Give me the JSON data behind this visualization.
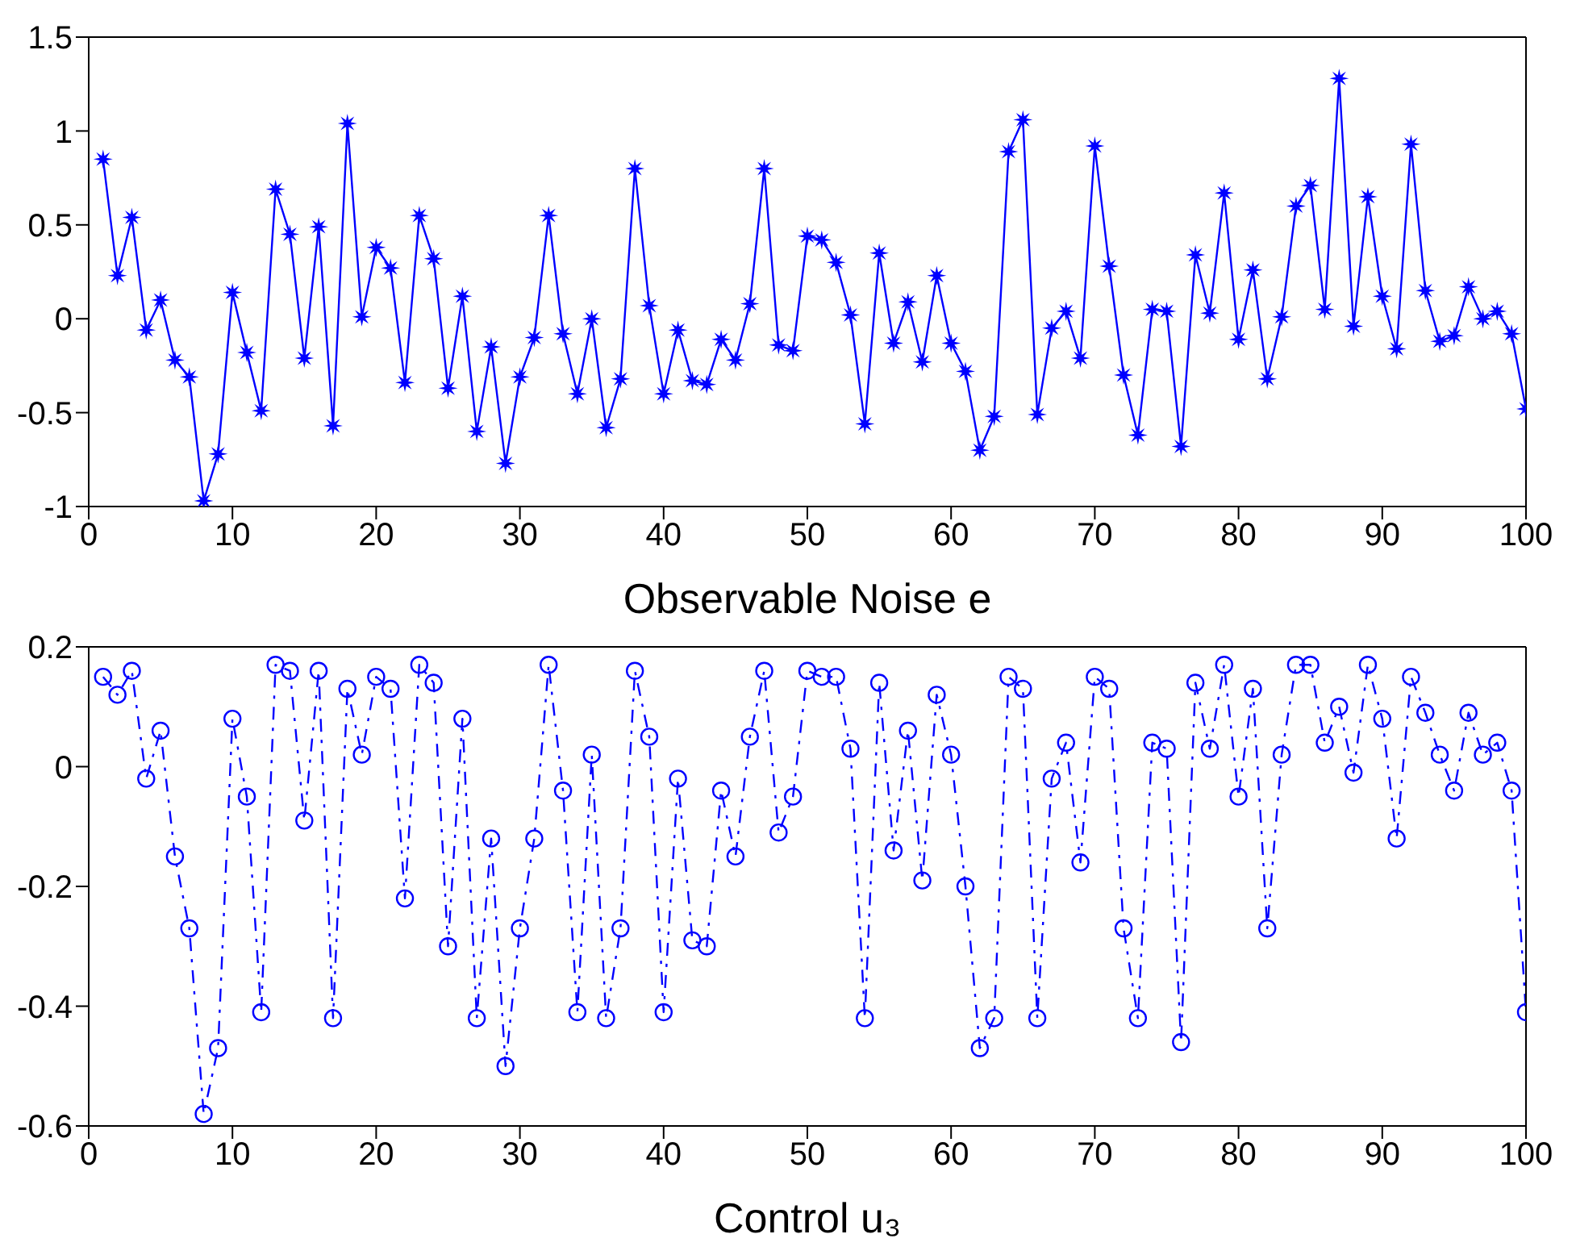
{
  "chart_data": [
    {
      "type": "line",
      "xlabel": "Observable Noise e",
      "marker": "star",
      "line_style": "solid",
      "grid": false,
      "x": [
        1,
        2,
        3,
        4,
        5,
        6,
        7,
        8,
        9,
        10,
        11,
        12,
        13,
        14,
        15,
        16,
        17,
        18,
        19,
        20,
        21,
        22,
        23,
        24,
        25,
        26,
        27,
        28,
        29,
        30,
        31,
        32,
        33,
        34,
        35,
        36,
        37,
        38,
        39,
        40,
        41,
        42,
        43,
        44,
        45,
        46,
        47,
        48,
        49,
        50,
        51,
        52,
        53,
        54,
        55,
        56,
        57,
        58,
        59,
        60,
        61,
        62,
        63,
        64,
        65,
        66,
        67,
        68,
        69,
        70,
        71,
        72,
        73,
        74,
        75,
        76,
        77,
        78,
        79,
        80,
        81,
        82,
        83,
        84,
        85,
        86,
        87,
        88,
        89,
        90,
        91,
        92,
        93,
        94,
        95,
        96,
        97,
        98,
        99,
        100
      ],
      "series": [
        {
          "color": "#0000ff",
          "values": [
            0.85,
            0.23,
            0.54,
            -0.06,
            0.1,
            -0.22,
            -0.31,
            -0.97,
            -0.72,
            0.14,
            -0.18,
            -0.49,
            0.69,
            0.45,
            -0.21,
            0.49,
            -0.57,
            1.04,
            0.01,
            0.38,
            0.27,
            -0.34,
            0.55,
            0.32,
            -0.37,
            0.12,
            -0.6,
            -0.15,
            -0.77,
            -0.31,
            -0.1,
            0.55,
            -0.08,
            -0.4,
            0.0,
            -0.58,
            -0.32,
            0.8,
            0.07,
            -0.4,
            -0.06,
            -0.33,
            -0.35,
            -0.11,
            -0.22,
            0.08,
            0.8,
            -0.14,
            -0.17,
            0.44,
            0.42,
            0.3,
            0.02,
            -0.56,
            0.35,
            -0.13,
            0.09,
            -0.23,
            0.23,
            -0.13,
            -0.28,
            -0.7,
            -0.52,
            0.89,
            1.06,
            -0.51,
            -0.05,
            0.04,
            -0.21,
            0.92,
            0.28,
            -0.3,
            -0.62,
            0.05,
            0.04,
            -0.68,
            0.34,
            0.03,
            0.67,
            -0.11,
            0.26,
            -0.32,
            0.01,
            0.6,
            0.71,
            0.05,
            1.28,
            -0.04,
            0.65,
            0.12,
            -0.16,
            0.93,
            0.15,
            -0.12,
            -0.09,
            0.17,
            0.0,
            0.04,
            -0.08,
            -0.48
          ]
        }
      ],
      "xlim": [
        0,
        100
      ],
      "xticks": [
        0,
        10,
        20,
        30,
        40,
        50,
        60,
        70,
        80,
        90,
        100
      ],
      "ylim": [
        -1,
        1.5
      ],
      "yticks": [
        -1,
        -0.5,
        0,
        0.5,
        1,
        1.5
      ]
    },
    {
      "type": "line",
      "xlabel": "Control u₃",
      "marker": "circle",
      "line_style": "dashed",
      "grid": false,
      "x": [
        1,
        2,
        3,
        4,
        5,
        6,
        7,
        8,
        9,
        10,
        11,
        12,
        13,
        14,
        15,
        16,
        17,
        18,
        19,
        20,
        21,
        22,
        23,
        24,
        25,
        26,
        27,
        28,
        29,
        30,
        31,
        32,
        33,
        34,
        35,
        36,
        37,
        38,
        39,
        40,
        41,
        42,
        43,
        44,
        45,
        46,
        47,
        48,
        49,
        50,
        51,
        52,
        53,
        54,
        55,
        56,
        57,
        58,
        59,
        60,
        61,
        62,
        63,
        64,
        65,
        66,
        67,
        68,
        69,
        70,
        71,
        72,
        73,
        74,
        75,
        76,
        77,
        78,
        79,
        80,
        81,
        82,
        83,
        84,
        85,
        86,
        87,
        88,
        89,
        90,
        91,
        92,
        93,
        94,
        95,
        96,
        97,
        98,
        99,
        100
      ],
      "series": [
        {
          "color": "#0000ff",
          "values": [
            0.15,
            0.12,
            0.16,
            -0.02,
            0.06,
            -0.15,
            -0.27,
            -0.58,
            -0.47,
            0.08,
            -0.05,
            -0.41,
            0.17,
            0.16,
            -0.09,
            0.16,
            -0.42,
            0.13,
            0.02,
            0.15,
            0.13,
            -0.22,
            0.17,
            0.14,
            -0.3,
            0.08,
            -0.42,
            -0.12,
            -0.5,
            -0.27,
            -0.12,
            0.17,
            -0.04,
            -0.41,
            0.02,
            -0.42,
            -0.27,
            0.16,
            0.05,
            -0.41,
            -0.02,
            -0.29,
            -0.3,
            -0.04,
            -0.15,
            0.05,
            0.16,
            -0.11,
            -0.05,
            0.16,
            0.15,
            0.15,
            0.03,
            -0.42,
            0.14,
            -0.14,
            0.06,
            -0.19,
            0.12,
            0.02,
            -0.2,
            -0.47,
            -0.42,
            0.15,
            0.13,
            -0.42,
            -0.02,
            0.04,
            -0.16,
            0.15,
            0.13,
            -0.27,
            -0.42,
            0.04,
            0.03,
            -0.46,
            0.14,
            0.03,
            0.17,
            -0.05,
            0.13,
            -0.27,
            0.02,
            0.17,
            0.17,
            0.04,
            0.1,
            -0.01,
            0.17,
            0.08,
            -0.12,
            0.15,
            0.09,
            0.02,
            -0.04,
            0.09,
            0.02,
            0.04,
            -0.04,
            -0.41
          ]
        }
      ],
      "xlim": [
        0,
        100
      ],
      "xticks": [
        0,
        10,
        20,
        30,
        40,
        50,
        60,
        70,
        80,
        90,
        100
      ],
      "ylim": [
        -0.6,
        0.2
      ],
      "yticks": [
        -0.6,
        -0.4,
        -0.2,
        0,
        0.2
      ]
    }
  ]
}
